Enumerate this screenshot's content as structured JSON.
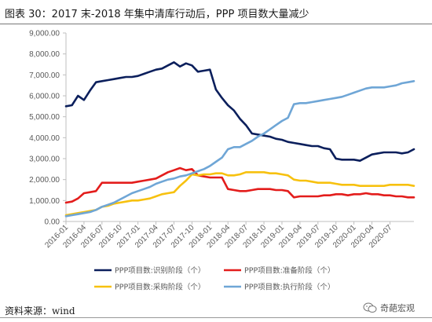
{
  "page": {
    "title": "图表 30：2017 末-2018 年集中清库行动后，PPP 项目数大量减少",
    "source": "资料来源：wind",
    "watermark": "奇葩宏观"
  },
  "colors": {
    "identify": "#0b1f5c",
    "prepare": "#e31d1c",
    "procure": "#f7c10f",
    "execute": "#6fa6d6",
    "axis": "#bfbfbf",
    "text": "#595959"
  },
  "chart_data": {
    "type": "line",
    "title": "",
    "xlabel": "",
    "ylabel": "",
    "ylim": [
      0,
      9000
    ],
    "yticks": [
      0,
      1000,
      2000,
      3000,
      4000,
      5000,
      6000,
      7000,
      8000,
      9000
    ],
    "ytick_labels": [
      "0.00",
      "1,000.00",
      "2,000.00",
      "3,000.00",
      "4,000.00",
      "5,000.00",
      "6,000.00",
      "7,000.00",
      "8,000.00",
      "9,000.00"
    ],
    "grid": false,
    "legend_position": "bottom",
    "x_start": "2016-01",
    "x_end": "2020-10",
    "xtick_labels": [
      "2016-01",
      "2016-04",
      "2016-07",
      "2016-10",
      "2017-01",
      "2017-04",
      "2017-07",
      "2017-10",
      "2018-01",
      "2018-04",
      "2018-07",
      "2018-10",
      "2019-01",
      "2019-04",
      "2019-07",
      "2019-10",
      "2020-01",
      "2020-04",
      "2020-07"
    ],
    "series": [
      {
        "name": "PPP项目数:识别阶段（个）",
        "color_key": "identify",
        "values": [
          5500,
          5550,
          6000,
          5800,
          6250,
          6650,
          6700,
          6750,
          6800,
          6850,
          6900,
          6900,
          6950,
          7050,
          7150,
          7250,
          7300,
          7450,
          7600,
          7400,
          7550,
          7450,
          7150,
          7200,
          7250,
          6300,
          5900,
          5550,
          5300,
          4900,
          4600,
          4200,
          4150,
          4100,
          4050,
          3950,
          3900,
          3800,
          3750,
          3700,
          3650,
          3600,
          3600,
          3500,
          3450,
          3000,
          2950,
          2950,
          2950,
          2900,
          3050,
          3200,
          3250,
          3300,
          3300,
          3300,
          3250,
          3300,
          3450
        ]
      },
      {
        "name": "PPP项目数:准备阶段（个）",
        "color_key": "prepare",
        "values": [
          900,
          950,
          1100,
          1350,
          1400,
          1450,
          1850,
          1850,
          1850,
          1850,
          1850,
          1850,
          1900,
          1950,
          2000,
          2050,
          2200,
          2350,
          2450,
          2550,
          2450,
          2500,
          2200,
          2150,
          2100,
          2100,
          2100,
          1550,
          1500,
          1450,
          1450,
          1500,
          1550,
          1550,
          1550,
          1500,
          1500,
          1450,
          1150,
          1200,
          1200,
          1200,
          1200,
          1250,
          1250,
          1300,
          1300,
          1250,
          1300,
          1300,
          1350,
          1300,
          1300,
          1250,
          1250,
          1200,
          1200,
          1150,
          1150
        ]
      },
      {
        "name": "PPP项目数:采购阶段（个）",
        "color_key": "procure",
        "values": [
          300,
          350,
          400,
          450,
          500,
          550,
          700,
          750,
          850,
          900,
          950,
          1000,
          1000,
          1050,
          1100,
          1200,
          1300,
          1350,
          1400,
          1700,
          1950,
          2250,
          2200,
          2250,
          2250,
          2300,
          2300,
          2200,
          2200,
          2250,
          2350,
          2350,
          2350,
          2350,
          2300,
          2300,
          2250,
          2200,
          2000,
          1950,
          1950,
          1900,
          1850,
          1850,
          1850,
          1800,
          1750,
          1750,
          1750,
          1700,
          1700,
          1700,
          1700,
          1700,
          1750,
          1750,
          1750,
          1750,
          1700
        ]
      },
      {
        "name": "PPP项目数:执行阶段（个）",
        "color_key": "execute",
        "values": [
          250,
          300,
          350,
          400,
          450,
          550,
          700,
          800,
          900,
          1050,
          1200,
          1350,
          1450,
          1550,
          1650,
          1800,
          1900,
          2000,
          2050,
          2150,
          2200,
          2300,
          2400,
          2500,
          2650,
          2850,
          3050,
          3450,
          3550,
          3550,
          3700,
          3850,
          4050,
          4200,
          4400,
          4600,
          4800,
          4950,
          5600,
          5650,
          5650,
          5700,
          5750,
          5800,
          5850,
          5900,
          5950,
          6050,
          6150,
          6250,
          6350,
          6400,
          6400,
          6400,
          6450,
          6500,
          6600,
          6650,
          6700
        ]
      }
    ]
  }
}
